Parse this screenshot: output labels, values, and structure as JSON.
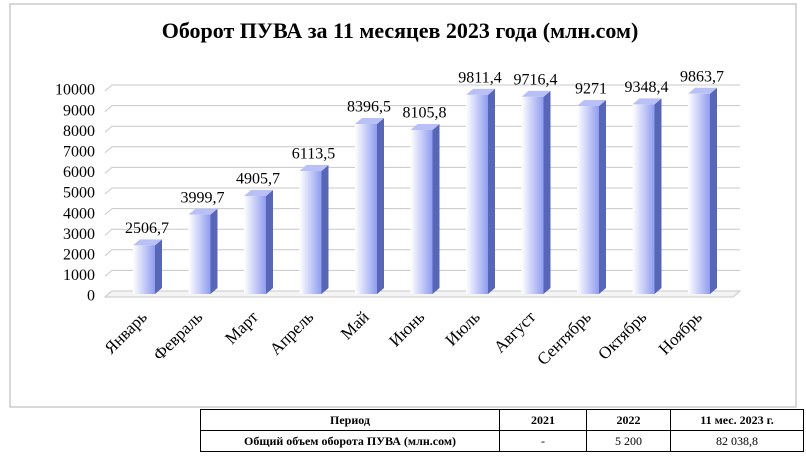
{
  "chart_data": {
    "type": "bar3d",
    "title": "Оборот ПУВА за 11 месяцев 2023 года (млн.сом)",
    "categories": [
      "Январь",
      "Февраль",
      "Март",
      "Апрель",
      "Май",
      "Июнь",
      "Июль",
      "Август",
      "Сентябрь",
      "Октябрь",
      "Ноябрь"
    ],
    "values": [
      2506.7,
      3999.7,
      4905.7,
      6113.5,
      8396.5,
      8105.8,
      9811.4,
      9716.4,
      9271,
      9348.4,
      9863.7
    ],
    "value_labels": [
      "2506,7",
      "3999,7",
      "4905,7",
      "6113,5",
      "8396,5",
      "8105,8",
      "9811,4",
      "9716,4",
      "9271",
      "9348,4",
      "9863,7"
    ],
    "color": "#8f9cf0",
    "ylim": [
      0,
      10000
    ],
    "yticks": [
      0,
      1000,
      2000,
      3000,
      4000,
      5000,
      6000,
      7000,
      8000,
      9000,
      10000
    ],
    "grid": true
  },
  "table": {
    "rows": [
      [
        "Период",
        "2021",
        "2022",
        "11 мес. 2023 г."
      ],
      [
        "Общий объем оборота ПУВА (млн.сом)",
        "-",
        "5 200",
        "82 038,8"
      ]
    ]
  }
}
